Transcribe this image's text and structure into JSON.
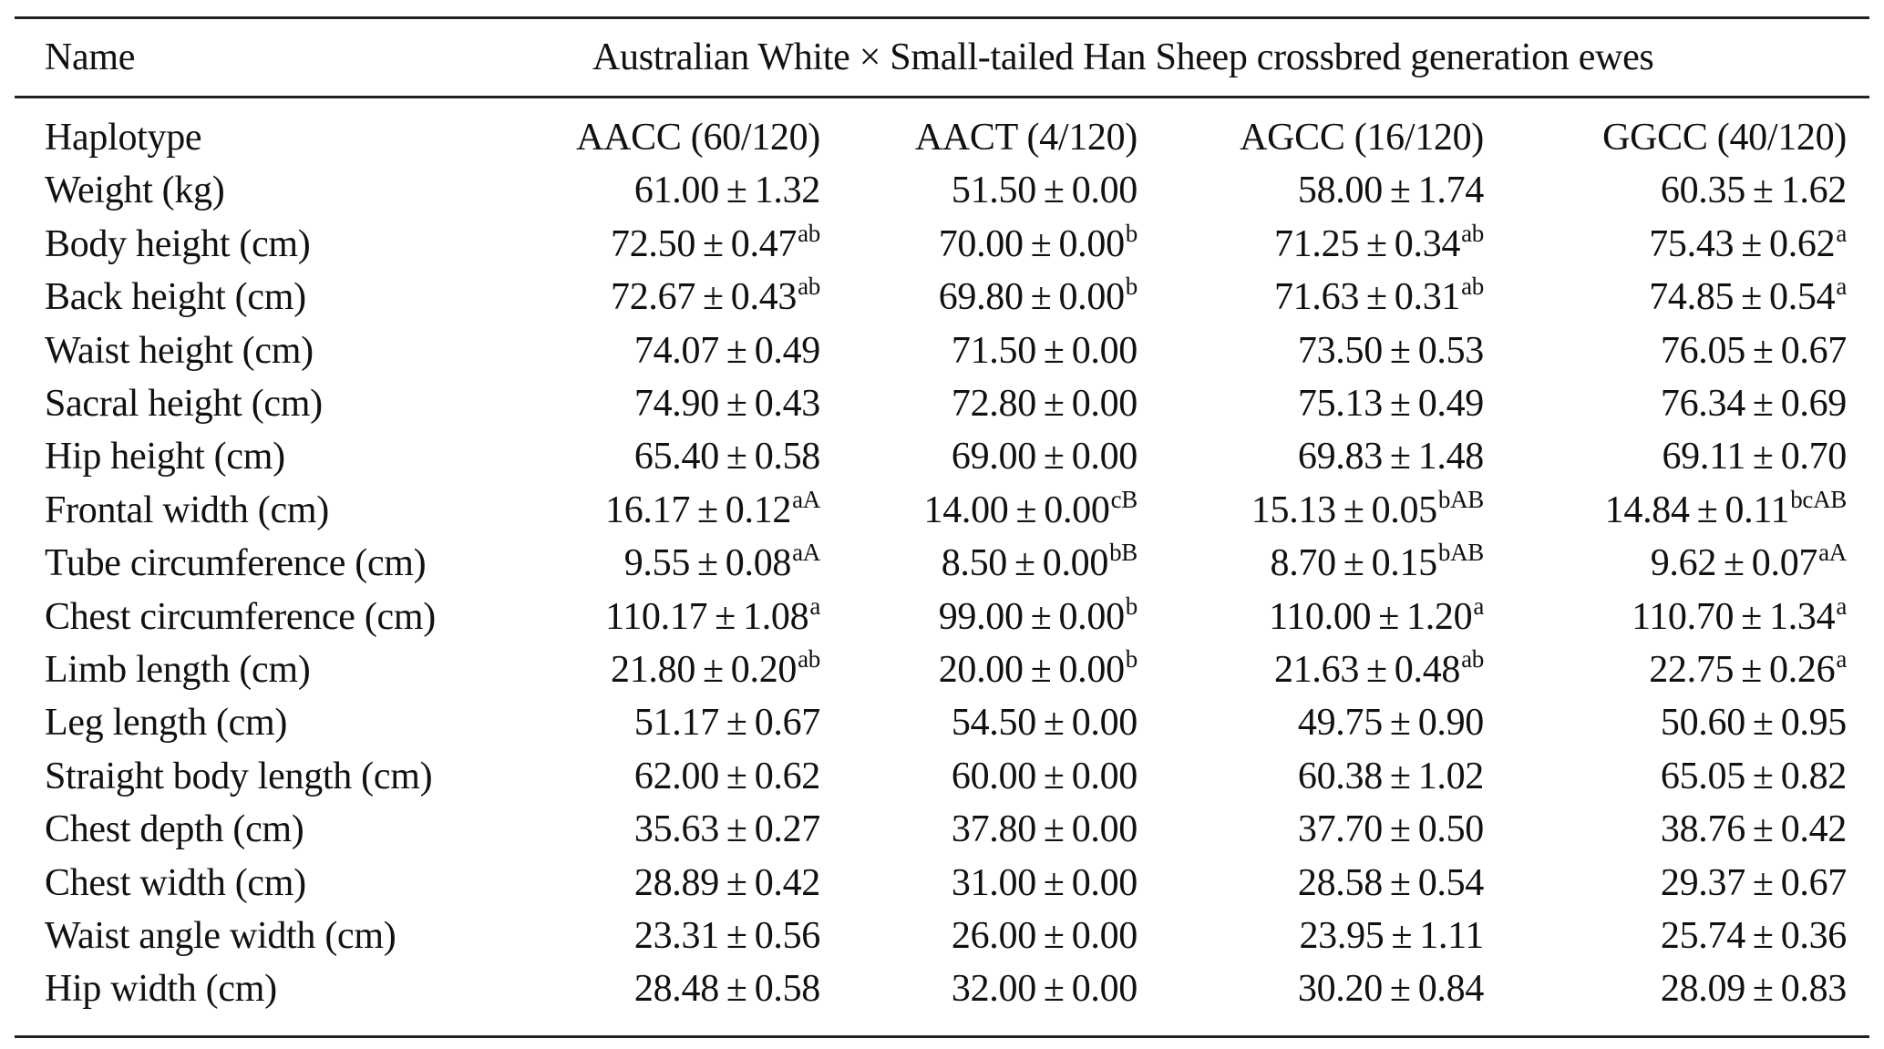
{
  "table": {
    "header": {
      "name_label": "Name",
      "group_label": "Australian White × Small-tailed Han Sheep crossbred generation ewes"
    },
    "columns": [
      "Haplotype",
      "AACC (60/120)",
      "AACT (4/120)",
      "AGCC (16/120)",
      "GGCC (40/120)"
    ],
    "rows": [
      {
        "label": "Weight (kg)",
        "cells": [
          {
            "mean": "61.00",
            "se": "1.32",
            "sup": ""
          },
          {
            "mean": "51.50",
            "se": "0.00",
            "sup": ""
          },
          {
            "mean": "58.00",
            "se": "1.74",
            "sup": ""
          },
          {
            "mean": "60.35",
            "se": "1.62",
            "sup": ""
          }
        ]
      },
      {
        "label": "Body height (cm)",
        "cells": [
          {
            "mean": "72.50",
            "se": "0.47",
            "sup": "ab"
          },
          {
            "mean": "70.00",
            "se": "0.00",
            "sup": "b"
          },
          {
            "mean": "71.25",
            "se": "0.34",
            "sup": "ab"
          },
          {
            "mean": "75.43",
            "se": "0.62",
            "sup": "a"
          }
        ]
      },
      {
        "label": "Back height (cm)",
        "cells": [
          {
            "mean": "72.67",
            "se": "0.43",
            "sup": "ab"
          },
          {
            "mean": "69.80",
            "se": "0.00",
            "sup": "b"
          },
          {
            "mean": "71.63",
            "se": "0.31",
            "sup": "ab"
          },
          {
            "mean": "74.85",
            "se": "0.54",
            "sup": "a"
          }
        ]
      },
      {
        "label": "Waist height (cm)",
        "cells": [
          {
            "mean": "74.07",
            "se": "0.49",
            "sup": ""
          },
          {
            "mean": "71.50",
            "se": "0.00",
            "sup": ""
          },
          {
            "mean": "73.50",
            "se": "0.53",
            "sup": ""
          },
          {
            "mean": "76.05",
            "se": "0.67",
            "sup": ""
          }
        ]
      },
      {
        "label": "Sacral height (cm)",
        "cells": [
          {
            "mean": "74.90",
            "se": "0.43",
            "sup": ""
          },
          {
            "mean": "72.80",
            "se": "0.00",
            "sup": ""
          },
          {
            "mean": "75.13",
            "se": "0.49",
            "sup": ""
          },
          {
            "mean": "76.34",
            "se": "0.69",
            "sup": ""
          }
        ]
      },
      {
        "label": "Hip height (cm)",
        "cells": [
          {
            "mean": "65.40",
            "se": "0.58",
            "sup": ""
          },
          {
            "mean": "69.00",
            "se": "0.00",
            "sup": ""
          },
          {
            "mean": "69.83",
            "se": "1.48",
            "sup": ""
          },
          {
            "mean": "69.11",
            "se": "0.70",
            "sup": ""
          }
        ]
      },
      {
        "label": "Frontal width (cm)",
        "cells": [
          {
            "mean": "16.17",
            "se": "0.12",
            "sup": "aA"
          },
          {
            "mean": "14.00",
            "se": "0.00",
            "sup": "cB"
          },
          {
            "mean": "15.13",
            "se": "0.05",
            "sup": "bAB"
          },
          {
            "mean": "14.84",
            "se": "0.11",
            "sup": "bcAB"
          }
        ]
      },
      {
        "label": "Tube circumference (cm)",
        "cells": [
          {
            "mean": "9.55",
            "se": "0.08",
            "sup": "aA"
          },
          {
            "mean": "8.50",
            "se": "0.00",
            "sup": "bB"
          },
          {
            "mean": "8.70",
            "se": "0.15",
            "sup": "bAB"
          },
          {
            "mean": "9.62",
            "se": "0.07",
            "sup": "aA"
          }
        ]
      },
      {
        "label": "Chest circumference (cm)",
        "cells": [
          {
            "mean": "110.17",
            "se": "1.08",
            "sup": "a"
          },
          {
            "mean": "99.00",
            "se": "0.00",
            "sup": "b"
          },
          {
            "mean": "110.00",
            "se": "1.20",
            "sup": "a"
          },
          {
            "mean": "110.70",
            "se": "1.34",
            "sup": "a"
          }
        ]
      },
      {
        "label": "Limb length (cm)",
        "cells": [
          {
            "mean": "21.80",
            "se": "0.20",
            "sup": "ab"
          },
          {
            "mean": "20.00",
            "se": "0.00",
            "sup": "b"
          },
          {
            "mean": "21.63",
            "se": "0.48",
            "sup": "ab"
          },
          {
            "mean": "22.75",
            "se": "0.26",
            "sup": "a"
          }
        ]
      },
      {
        "label": "Leg length (cm)",
        "cells": [
          {
            "mean": "51.17",
            "se": "0.67",
            "sup": ""
          },
          {
            "mean": "54.50",
            "se": "0.00",
            "sup": ""
          },
          {
            "mean": "49.75",
            "se": "0.90",
            "sup": ""
          },
          {
            "mean": "50.60",
            "se": "0.95",
            "sup": ""
          }
        ]
      },
      {
        "label": "Straight body length (cm)",
        "cells": [
          {
            "mean": "62.00",
            "se": "0.62",
            "sup": ""
          },
          {
            "mean": "60.00",
            "se": "0.00",
            "sup": ""
          },
          {
            "mean": "60.38",
            "se": "1.02",
            "sup": ""
          },
          {
            "mean": "65.05",
            "se": "0.82",
            "sup": ""
          }
        ]
      },
      {
        "label": "Chest depth (cm)",
        "cells": [
          {
            "mean": "35.63",
            "se": "0.27",
            "sup": ""
          },
          {
            "mean": "37.80",
            "se": "0.00",
            "sup": ""
          },
          {
            "mean": "37.70",
            "se": "0.50",
            "sup": ""
          },
          {
            "mean": "38.76",
            "se": "0.42",
            "sup": ""
          }
        ]
      },
      {
        "label": "Chest width (cm)",
        "cells": [
          {
            "mean": "28.89",
            "se": "0.42",
            "sup": ""
          },
          {
            "mean": "31.00",
            "se": "0.00",
            "sup": ""
          },
          {
            "mean": "28.58",
            "se": "0.54",
            "sup": ""
          },
          {
            "mean": "29.37",
            "se": "0.67",
            "sup": ""
          }
        ]
      },
      {
        "label": "Waist angle width (cm)",
        "cells": [
          {
            "mean": "23.31",
            "se": "0.56",
            "sup": ""
          },
          {
            "mean": "26.00",
            "se": "0.00",
            "sup": ""
          },
          {
            "mean": "23.95",
            "se": "1.11",
            "sup": ""
          },
          {
            "mean": "25.74",
            "se": "0.36",
            "sup": ""
          }
        ]
      },
      {
        "label": "Hip width (cm)",
        "cells": [
          {
            "mean": "28.48",
            "se": "0.58",
            "sup": ""
          },
          {
            "mean": "32.00",
            "se": "0.00",
            "sup": ""
          },
          {
            "mean": "30.20",
            "se": "0.84",
            "sup": ""
          },
          {
            "mean": "28.09",
            "se": "0.83",
            "sup": ""
          }
        ]
      }
    ],
    "pm_symbol": "±"
  }
}
